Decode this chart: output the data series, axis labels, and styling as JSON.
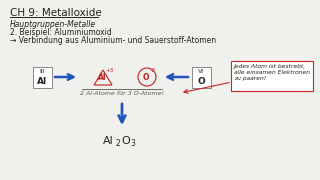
{
  "title": "CH 9: Metalloxide",
  "subtitle1": "Hauptgruppen-Metalle",
  "subtitle2": "2. Beispiel: Aluminiumoxid",
  "subtitle3": "→ Verbindung aus Aluminium- und Sauerstoff-Atomen",
  "box_left_top": "III",
  "box_left_bot": "Al",
  "box_right_top": "VI",
  "box_right_bot": "O",
  "center_label": "2 Al-Atome für 3 O-Atome!",
  "note_text": "Jedes Atom ist bestrebt,\nalle einsamen Elektronen\nzu paaren!",
  "bg_color": "#f0f0ec",
  "arrow_blue": "#2255bb",
  "note_red": "#cc2222",
  "box_edge": "#888888",
  "text_dark": "#222222",
  "text_gray": "#555555",
  "al_color": "#bb2222",
  "o_color": "#bb2222"
}
